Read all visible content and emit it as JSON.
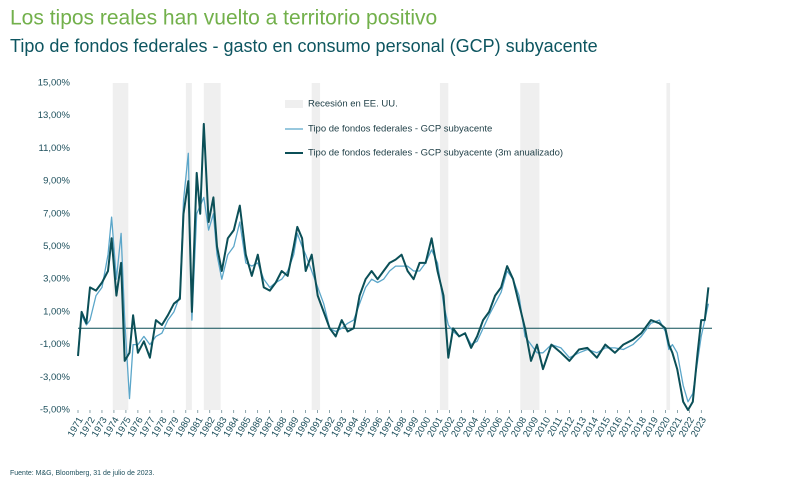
{
  "chart_data": {
    "type": "line",
    "title": "Los tipos reales han vuelto a territorio positivo",
    "subtitle": "Tipo de fondos federales - gasto en consumo personal (GCP) subyacente",
    "source": "Fuente: M&G, Bloomberg, 31 de julio de 2023.",
    "recession_label": "Recesión en EE. UU.",
    "recession_color": "#efefef",
    "recessions": [
      [
        1973.9,
        1975.2
      ],
      [
        1980.0,
        1980.5
      ],
      [
        1981.5,
        1982.9
      ],
      [
        1990.5,
        1991.2
      ],
      [
        2001.2,
        2001.9
      ],
      [
        2007.9,
        2009.5
      ],
      [
        2020.1,
        2020.4
      ]
    ],
    "x": [
      1971,
      1971.3,
      1971.7,
      1972.0,
      1972.5,
      1973.0,
      1973.5,
      1973.8,
      1974.2,
      1974.6,
      1974.9,
      1975.3,
      1975.6,
      1976.0,
      1976.5,
      1977.0,
      1977.5,
      1978.0,
      1978.5,
      1979.0,
      1979.5,
      1979.8,
      1980.2,
      1980.5,
      1980.9,
      1981.2,
      1981.5,
      1981.9,
      1982.3,
      1982.6,
      1983.0,
      1983.5,
      1984.0,
      1984.5,
      1985.0,
      1985.5,
      1986.0,
      1986.5,
      1987.0,
      1987.5,
      1988.0,
      1988.5,
      1989.0,
      1989.3,
      1989.7,
      1990.0,
      1990.5,
      1991.0,
      1991.5,
      1992.0,
      1992.5,
      1993.0,
      1993.5,
      1994.0,
      1994.5,
      1995.0,
      1995.5,
      1996.0,
      1996.5,
      1997.0,
      1997.5,
      1998.0,
      1998.5,
      1999.0,
      1999.5,
      2000.0,
      2000.5,
      2001.0,
      2001.5,
      2001.9,
      2002.3,
      2002.8,
      2003.3,
      2003.8,
      2004.3,
      2004.8,
      2005.3,
      2005.8,
      2006.3,
      2006.8,
      2007.3,
      2007.8,
      2008.3,
      2008.8,
      2009.3,
      2009.8,
      2010.5,
      2011.3,
      2012.0,
      2012.8,
      2013.5,
      2014.3,
      2015.0,
      2015.8,
      2016.5,
      2017.3,
      2018.0,
      2018.8,
      2019.5,
      2020.0,
      2020.3,
      2020.6,
      2021.0,
      2021.5,
      2021.9,
      2022.3,
      2022.7,
      2023.0,
      2023.3,
      2023.6
    ],
    "series": [
      {
        "name": "Tipo de fondos federales - GCP subyacente",
        "color": "#5ba6c9",
        "width": 1.3,
        "values": [
          -1.5,
          0.8,
          0.2,
          0.5,
          2.0,
          2.5,
          4.5,
          6.8,
          3.0,
          5.8,
          0.5,
          -4.3,
          -1.0,
          -1.0,
          -0.5,
          -1.0,
          -0.5,
          -0.3,
          0.5,
          1.0,
          2.0,
          7.8,
          10.7,
          0.5,
          7.0,
          7.5,
          8.0,
          6.0,
          7.0,
          4.5,
          3.0,
          4.5,
          5.0,
          6.5,
          4.0,
          3.8,
          4.0,
          3.0,
          2.5,
          2.8,
          3.0,
          3.5,
          4.5,
          5.8,
          5.0,
          4.5,
          3.5,
          2.5,
          1.5,
          0.0,
          -0.2,
          0.0,
          0.3,
          0.5,
          1.5,
          2.5,
          3.0,
          2.8,
          3.0,
          3.5,
          3.8,
          3.8,
          3.8,
          3.5,
          3.5,
          4.0,
          4.8,
          4.0,
          1.5,
          0.2,
          -0.2,
          -0.5,
          -0.3,
          -1.0,
          -0.8,
          0.0,
          0.8,
          1.5,
          2.2,
          3.5,
          3.0,
          2.0,
          -0.5,
          -1.0,
          -1.5,
          -1.5,
          -1.0,
          -1.2,
          -1.8,
          -1.5,
          -1.3,
          -1.5,
          -1.2,
          -1.2,
          -1.3,
          -1.0,
          -0.5,
          0.3,
          0.5,
          -0.2,
          -1.3,
          -1.0,
          -1.5,
          -3.5,
          -4.5,
          -4.0,
          -2.0,
          -0.5,
          0.5,
          1.5
        ]
      },
      {
        "name": "Tipo de fondos federales - GCP subyacente (3m anualizado)",
        "color": "#0b4f57",
        "width": 2,
        "values": [
          -1.7,
          1.0,
          0.3,
          2.5,
          2.3,
          2.8,
          3.5,
          5.5,
          2.0,
          4.0,
          -2.0,
          -1.5,
          0.8,
          -1.5,
          -0.8,
          -1.8,
          0.5,
          0.2,
          0.8,
          1.5,
          1.8,
          7.0,
          9.0,
          1.0,
          9.5,
          7.0,
          12.5,
          6.5,
          8.0,
          5.0,
          3.5,
          5.5,
          6.0,
          7.5,
          4.5,
          3.2,
          4.5,
          2.5,
          2.3,
          2.8,
          3.5,
          3.2,
          5.0,
          6.2,
          5.5,
          3.5,
          4.5,
          2.0,
          1.0,
          0.0,
          -0.5,
          0.5,
          -0.2,
          0.0,
          2.0,
          3.0,
          3.5,
          3.0,
          3.5,
          4.0,
          4.2,
          4.5,
          3.5,
          3.0,
          4.0,
          4.0,
          5.5,
          3.5,
          2.0,
          -1.8,
          0.0,
          -0.5,
          -0.3,
          -1.2,
          -0.5,
          0.5,
          1.0,
          2.0,
          2.5,
          3.8,
          3.0,
          1.5,
          0.0,
          -2.0,
          -1.0,
          -2.5,
          -1.0,
          -1.5,
          -2.0,
          -1.3,
          -1.2,
          -1.8,
          -1.0,
          -1.5,
          -1.0,
          -0.7,
          -0.3,
          0.5,
          0.3,
          0.0,
          -1.0,
          -1.5,
          -2.5,
          -4.5,
          -5.0,
          -4.5,
          -1.5,
          0.5,
          0.5,
          2.5
        ]
      }
    ],
    "xlim": [
      1971,
      2023.9
    ],
    "xticks": [
      1971,
      1972,
      1973,
      1974,
      1975,
      1976,
      1977,
      1978,
      1979,
      1980,
      1981,
      1982,
      1983,
      1984,
      1985,
      1986,
      1987,
      1988,
      1989,
      1990,
      1991,
      1992,
      1993,
      1994,
      1995,
      1996,
      1997,
      1998,
      1999,
      2000,
      2001,
      2002,
      2003,
      2004,
      2005,
      2006,
      2007,
      2008,
      2009,
      2010,
      2011,
      2012,
      2013,
      2014,
      2015,
      2016,
      2017,
      2018,
      2019,
      2020,
      2021,
      2022,
      2023
    ],
    "ylim": [
      -5,
      15
    ],
    "yticks": [
      {
        "value": -5,
        "label": "-5,00%"
      },
      {
        "value": -3,
        "label": "-3,00%"
      },
      {
        "value": -1,
        "label": "-1,00%"
      },
      {
        "value": 1,
        "label": "1,00%"
      },
      {
        "value": 3,
        "label": "3,00%"
      },
      {
        "value": 5,
        "label": "5,00%"
      },
      {
        "value": 7,
        "label": "7,00%"
      },
      {
        "value": 9,
        "label": "9,00%"
      },
      {
        "value": 11,
        "label": "11,00%"
      },
      {
        "value": 13,
        "label": "13,00%"
      },
      {
        "value": 15,
        "label": "15,00%"
      }
    ]
  }
}
